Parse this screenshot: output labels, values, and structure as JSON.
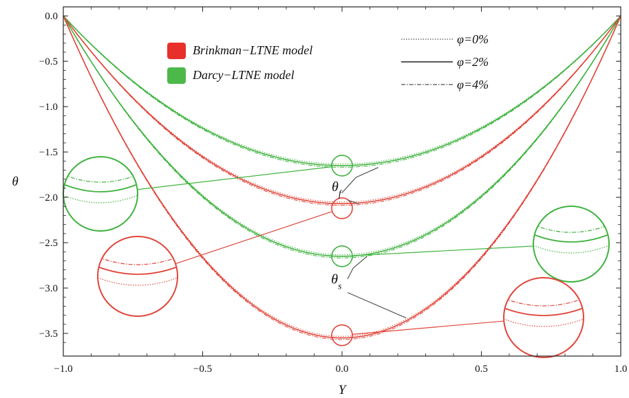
{
  "chart_data": {
    "type": "line",
    "title": "",
    "xlabel": "Y",
    "ylabel": "θ",
    "xlim": [
      -1.0,
      1.0
    ],
    "ylim": [
      -3.75,
      0.1
    ],
    "xticks": [
      "−1.0",
      "−0.5",
      "0.0",
      "0.5",
      "1.0"
    ],
    "xtick_values": [
      -1.0,
      -0.5,
      0.0,
      0.5,
      1.0
    ],
    "yticks": [
      "0.0",
      "−0.5",
      "−1.0",
      "−1.5",
      "−2.0",
      "−2.5",
      "−3.0",
      "−3.5"
    ],
    "ytick_values": [
      0.0,
      -0.5,
      -1.0,
      -1.5,
      -2.0,
      -2.5,
      -3.0,
      -3.5
    ],
    "grid": false,
    "colors": {
      "brinkman": "#e0453a",
      "darcy": "#3fb23f",
      "axis": "#222222",
      "pointer": "#555555"
    },
    "legend_models": [
      {
        "label": "Brinkman−LTNE model",
        "color": "#e8302a"
      },
      {
        "label": "Darcy−LTNE model",
        "color": "#4cb84a"
      }
    ],
    "legend_styles": [
      {
        "label": "φ=0%",
        "dash": "dotted"
      },
      {
        "label": "φ=2%",
        "dash": "solid"
      },
      {
        "label": "φ=4%",
        "dash": "dashdot"
      }
    ],
    "annotations": [
      {
        "text": "θf",
        "base": "θ",
        "sub": "f",
        "x": -0.02,
        "y": -1.93
      },
      {
        "text": "θs",
        "base": "θ",
        "sub": "s",
        "x": -0.02,
        "y": -2.95
      }
    ],
    "series": [
      {
        "model": "Darcy−LTNE",
        "phase": "fluid",
        "shape": "parabolic",
        "y_at_0": -1.65,
        "edge": [
          -1.0,
          1.0
        ],
        "color": "#3fb23f"
      },
      {
        "model": "Brinkman−LTNE",
        "phase": "fluid",
        "shape": "parabolic",
        "y_at_0": -2.07,
        "edge": [
          -1.0,
          1.0
        ],
        "color": "#e0453a"
      },
      {
        "model": "Darcy−LTNE",
        "phase": "solid",
        "shape": "parabolic",
        "y_at_0": -2.65,
        "edge": [
          -1.0,
          1.0
        ],
        "color": "#3fb23f"
      },
      {
        "model": "Brinkman−LTNE",
        "phase": "solid",
        "shape": "parabolic",
        "y_at_0": -3.55,
        "edge": [
          -1.0,
          1.0
        ],
        "color": "#e0453a"
      }
    ],
    "zoom_callouts": [
      {
        "target": [
          0.0,
          -1.65
        ],
        "color": "#3fb23f"
      },
      {
        "target": [
          0.0,
          -2.12
        ],
        "color": "#e0453a"
      },
      {
        "target": [
          0.0,
          -2.65
        ],
        "color": "#3fb23f"
      },
      {
        "target": [
          0.0,
          -3.52
        ],
        "color": "#e0453a"
      }
    ]
  }
}
